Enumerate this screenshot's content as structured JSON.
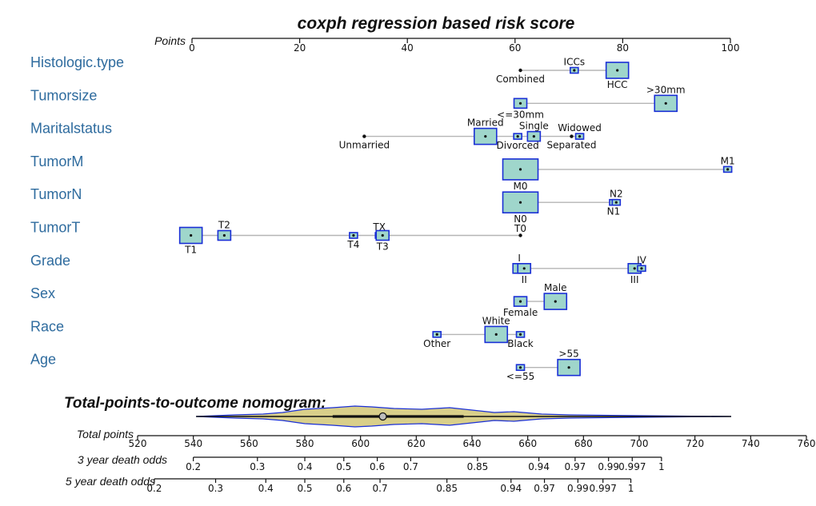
{
  "chart_data": {
    "type": "nomogram",
    "title": "coxph regression based risk score",
    "points_axis": {
      "label": "Points",
      "range": [
        0,
        100
      ],
      "ticks": [
        "0",
        "20",
        "40",
        "60",
        "80",
        "100"
      ]
    },
    "variables": [
      {
        "name": "Histologic.type",
        "levels": [
          {
            "label": "Combined",
            "points": 61,
            "size": 0
          },
          {
            "label": "ICCs",
            "points": 71,
            "size": 1
          },
          {
            "label": "HCC",
            "points": 79,
            "size": 3
          }
        ]
      },
      {
        "name": "Tumorsize",
        "levels": [
          {
            "label": "<=30mm",
            "points": 61,
            "size": 2
          },
          {
            "label": ">30mm",
            "points": 88,
            "size": 3
          }
        ]
      },
      {
        "name": "Maritalstatus",
        "levels": [
          {
            "label": "Unmarried",
            "points": 32,
            "size": 0
          },
          {
            "label": "Married",
            "points": 54.5,
            "size": 3
          },
          {
            "label": "Divorced",
            "points": 60.5,
            "size": 1
          },
          {
            "label": "Single",
            "points": 63.5,
            "size": 2
          },
          {
            "label": "Separated",
            "points": 70.5,
            "size": 0
          },
          {
            "label": "Widowed",
            "points": 72,
            "size": 1
          }
        ]
      },
      {
        "name": "TumorM",
        "levels": [
          {
            "label": "M0",
            "points": 61,
            "size": 4
          },
          {
            "label": "M1",
            "points": 99.5,
            "size": 1
          }
        ]
      },
      {
        "name": "TumorN",
        "levels": [
          {
            "label": "N0",
            "points": 61,
            "size": 4
          },
          {
            "label": "N1",
            "points": 78.3,
            "size": 1
          },
          {
            "label": "N2",
            "points": 78.8,
            "size": 1
          }
        ]
      },
      {
        "name": "TumorT",
        "levels": [
          {
            "label": "T1",
            "points": -0.2,
            "size": 3
          },
          {
            "label": "T2",
            "points": 6,
            "size": 2
          },
          {
            "label": "T4",
            "points": 30,
            "size": 1
          },
          {
            "label": "TX",
            "points": 34.8,
            "size": 1
          },
          {
            "label": "T3",
            "points": 35.4,
            "size": 2
          },
          {
            "label": "T0",
            "points": 61,
            "size": 0
          }
        ]
      },
      {
        "name": "Grade",
        "levels": [
          {
            "label": "I",
            "points": 60.8,
            "size": 2
          },
          {
            "label": "II",
            "points": 61.7,
            "size": 2
          },
          {
            "label": "III",
            "points": 82.2,
            "size": 2
          },
          {
            "label": "IV",
            "points": 83.5,
            "size": 1
          }
        ]
      },
      {
        "name": "Sex",
        "levels": [
          {
            "label": "Female",
            "points": 61,
            "size": 2
          },
          {
            "label": "Male",
            "points": 67.5,
            "size": 3
          }
        ]
      },
      {
        "name": "Race",
        "levels": [
          {
            "label": "Other",
            "points": 45.5,
            "size": 1
          },
          {
            "label": "White",
            "points": 56.5,
            "size": 3
          },
          {
            "label": "Black",
            "points": 61,
            "size": 1
          }
        ]
      },
      {
        "name": "Age",
        "levels": [
          {
            "label": "<=55",
            "points": 61,
            "size": 1
          },
          {
            "label": ">55",
            "points": 70,
            "size": 3
          }
        ]
      }
    ],
    "total_section": {
      "title": "Total-points-to-outcome nomogram:",
      "total_points": {
        "label": "Total points",
        "range": [
          520,
          760
        ],
        "ticks": [
          "520",
          "540",
          "560",
          "580",
          "600",
          "620",
          "640",
          "660",
          "680",
          "700",
          "720",
          "740",
          "760"
        ]
      },
      "observed_total": 608,
      "observed_range": [
        590,
        637
      ],
      "violin_range": [
        541,
        733
      ],
      "outcome_axes": [
        {
          "label": "3 year death odds",
          "ticks": [
            {
              "label": "0.2",
              "total": 540
            },
            {
              "label": "0.3",
              "total": 563
            },
            {
              "label": "0.4",
              "total": 580
            },
            {
              "label": "0.5",
              "total": 594
            },
            {
              "label": "0.6",
              "total": 606
            },
            {
              "label": "0.7",
              "total": 618
            },
            {
              "label": "0.85",
              "total": 642
            },
            {
              "label": "0.94",
              "total": 664
            },
            {
              "label": "0.97",
              "total": 677
            },
            {
              "label": "0.99",
              "total": 689
            },
            {
              "label": "0.997",
              "total": 697.5
            },
            {
              "label": "1",
              "total": 708
            }
          ]
        },
        {
          "label": "5 year death odds",
          "ticks": [
            {
              "label": "0.2",
              "total": 526
            },
            {
              "label": "0.3",
              "total": 548
            },
            {
              "label": "0.4",
              "total": 566
            },
            {
              "label": "0.5",
              "total": 580
            },
            {
              "label": "0.6",
              "total": 594
            },
            {
              "label": "0.7",
              "total": 607
            },
            {
              "label": "0.85",
              "total": 631
            },
            {
              "label": "0.94",
              "total": 654
            },
            {
              "label": "0.97",
              "total": 666
            },
            {
              "label": "0.99",
              "total": 678
            },
            {
              "label": "0.997",
              "total": 687
            },
            {
              "label": "1",
              "total": 697
            }
          ]
        }
      ]
    }
  }
}
